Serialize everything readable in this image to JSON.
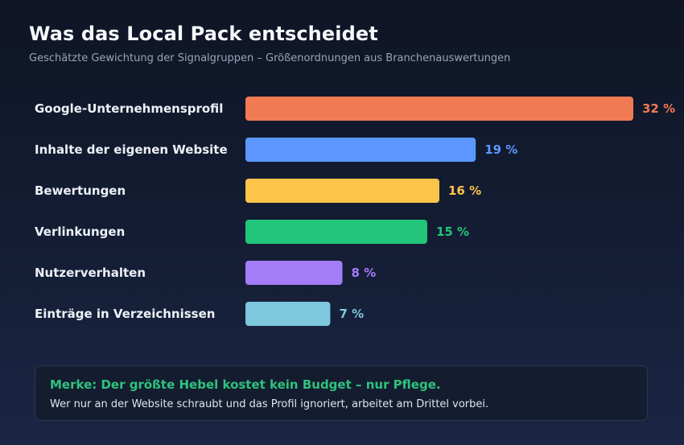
{
  "header": {
    "title": "Was das Local Pack entscheidet",
    "subtitle": "Geschätzte Gewichtung der Signalgruppen – Größenordnungen aus Branchenauswertungen"
  },
  "chart_data": {
    "type": "bar",
    "orientation": "horizontal",
    "categories": [
      "Google-Unternehmensprofil",
      "Inhalte der eigenen Website",
      "Bewertungen",
      "Verlinkungen",
      "Nutzerverhalten",
      "Einträge in Verzeichnissen"
    ],
    "values": [
      32,
      19,
      16,
      15,
      8,
      7
    ],
    "value_labels": [
      "32 %",
      "19 %",
      "16 %",
      "15 %",
      "8 %",
      "7 %"
    ],
    "colors": [
      "#f07b52",
      "#5c97ff",
      "#fdc44a",
      "#22c57a",
      "#a57cf7",
      "#7ec8de"
    ],
    "unit": "%",
    "xlim": [
      0,
      32
    ],
    "grid": false,
    "legend": "none"
  },
  "note": {
    "title": "Merke: Der größte Hebel kostet kein Budget – nur Pflege.",
    "text": "Wer nur an der Website schraubt und das Profil ignoriert, arbeitet am Drittel vorbei."
  }
}
